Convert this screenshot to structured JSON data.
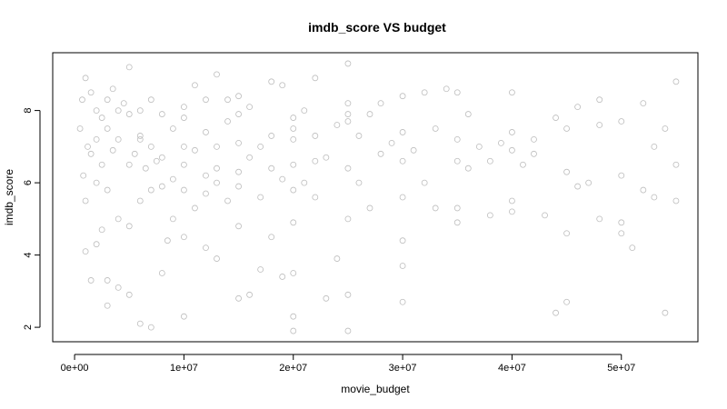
{
  "chart_data": {
    "type": "scatter",
    "title": "imdb_score VS budget",
    "xlabel": "movie_budget",
    "ylabel": "imdb_score",
    "xlim": [
      -2000000,
      57000000
    ],
    "ylim": [
      1.6,
      9.6
    ],
    "x_ticks": [
      0,
      10000000,
      20000000,
      30000000,
      40000000,
      50000000
    ],
    "x_tick_labels": [
      "0e+00",
      "1e+07",
      "2e+07",
      "3e+07",
      "4e+07",
      "5e+07"
    ],
    "y_ticks": [
      2,
      4,
      6,
      8
    ],
    "y_tick_labels": [
      "2",
      "4",
      "6",
      "8"
    ],
    "grid": false,
    "point_color": "#bdbdbd",
    "series": [
      {
        "x": [
          500000,
          700000,
          800000,
          1000000,
          1000000,
          1200000,
          1500000,
          1500000,
          1500000,
          2000000,
          2000000,
          2000000,
          2000000,
          2500000,
          2500000,
          2500000,
          3000000,
          3000000,
          3000000,
          3000000,
          3500000,
          3500000,
          4000000,
          4000000,
          4000000,
          4500000,
          5000000,
          5000000,
          5000000,
          5000000,
          5000000,
          5500000,
          6000000,
          6000000,
          6000000,
          6000000,
          6500000,
          7000000,
          7000000,
          7000000,
          7000000,
          7500000,
          8000000,
          8000000,
          8000000,
          8000000,
          8500000,
          9000000,
          9000000,
          9000000,
          10000000,
          10000000,
          10000000,
          10000000,
          10000000,
          10000000,
          10000000,
          11000000,
          11000000,
          11000000,
          12000000,
          12000000,
          12000000,
          12000000,
          12000000,
          13000000,
          13000000,
          13000000,
          13000000,
          14000000,
          14000000,
          14000000,
          15000000,
          15000000,
          15000000,
          15000000,
          15000000,
          15000000,
          15000000,
          16000000,
          16000000,
          16000000,
          17000000,
          17000000,
          17000000,
          18000000,
          18000000,
          18000000,
          18000000,
          19000000,
          19000000,
          19000000,
          20000000,
          20000000,
          20000000,
          20000000,
          20000000,
          20000000,
          20000000,
          20000000,
          21000000,
          21000000,
          22000000,
          22000000,
          22000000,
          23000000,
          23000000,
          24000000,
          24000000,
          25000000,
          25000000,
          25000000,
          25000000,
          25000000,
          25000000,
          25000000,
          26000000,
          26000000,
          27000000,
          27000000,
          28000000,
          28000000,
          29000000,
          30000000,
          30000000,
          30000000,
          30000000,
          30000000,
          30000000,
          30000000,
          31000000,
          32000000,
          32000000,
          33000000,
          33000000,
          34000000,
          35000000,
          35000000,
          35000000,
          35000000,
          35000000,
          36000000,
          36000000,
          37000000,
          38000000,
          38000000,
          39000000,
          40000000,
          40000000,
          40000000,
          40000000,
          40000000,
          41000000,
          42000000,
          42000000,
          43000000,
          44000000,
          44000000,
          45000000,
          45000000,
          45000000,
          45000000,
          46000000,
          46000000,
          47000000,
          48000000,
          48000000,
          48000000,
          50000000,
          50000000,
          50000000,
          50000000,
          51000000,
          52000000,
          52000000,
          53000000,
          53000000,
          54000000,
          54000000,
          55000000,
          55000000,
          55000000,
          1000000,
          3000000,
          4000000,
          6000000,
          20000000,
          25000000,
          13000000,
          22000000
        ],
        "y": [
          7.5,
          8.3,
          6.2,
          8.9,
          5.5,
          7.0,
          6.8,
          3.3,
          8.5,
          7.2,
          4.3,
          6.0,
          8.0,
          7.8,
          4.7,
          6.5,
          3.3,
          7.5,
          5.8,
          2.6,
          8.6,
          6.9,
          3.1,
          7.2,
          5.0,
          8.2,
          9.2,
          6.5,
          2.9,
          4.8,
          7.9,
          6.8,
          7.3,
          2.1,
          5.5,
          8.0,
          6.4,
          2.0,
          7.0,
          5.8,
          8.3,
          6.6,
          7.9,
          3.5,
          5.9,
          6.7,
          4.4,
          7.5,
          6.1,
          5.0,
          8.1,
          7.0,
          6.5,
          2.3,
          4.5,
          7.8,
          5.8,
          6.9,
          8.7,
          5.3,
          7.4,
          6.2,
          4.2,
          8.3,
          5.7,
          9.0,
          7.0,
          3.9,
          6.4,
          7.7,
          5.5,
          8.3,
          8.4,
          7.1,
          6.3,
          2.8,
          4.8,
          7.9,
          5.9,
          6.7,
          8.1,
          2.9,
          7.0,
          5.6,
          3.6,
          8.8,
          6.4,
          4.5,
          7.3,
          6.1,
          8.7,
          3.4,
          6.5,
          2.3,
          1.9,
          7.8,
          4.9,
          3.5,
          5.8,
          7.2,
          6.0,
          8.0,
          7.3,
          5.6,
          8.9,
          6.7,
          2.8,
          7.6,
          3.9,
          9.3,
          1.9,
          7.7,
          6.4,
          5.0,
          2.9,
          8.2,
          7.3,
          6.0,
          7.9,
          5.3,
          6.8,
          8.2,
          7.1,
          8.4,
          6.6,
          4.4,
          3.7,
          2.7,
          7.4,
          5.6,
          6.9,
          8.5,
          6.0,
          7.5,
          5.3,
          8.6,
          7.2,
          6.6,
          4.9,
          8.5,
          5.3,
          6.4,
          7.9,
          7.0,
          6.6,
          5.1,
          7.1,
          6.9,
          8.5,
          5.5,
          7.4,
          5.2,
          6.5,
          6.8,
          7.2,
          5.1,
          7.8,
          2.4,
          7.5,
          4.6,
          2.7,
          6.3,
          5.9,
          8.1,
          6.0,
          7.6,
          5.0,
          8.3,
          7.7,
          6.2,
          4.9,
          4.6,
          4.2,
          8.2,
          5.8,
          7.0,
          5.6,
          7.5,
          2.4,
          8.8,
          6.5,
          5.5,
          4.1,
          8.3,
          8.0,
          7.2,
          7.5,
          7.9,
          6.0,
          6.6
        ]
      }
    ]
  }
}
